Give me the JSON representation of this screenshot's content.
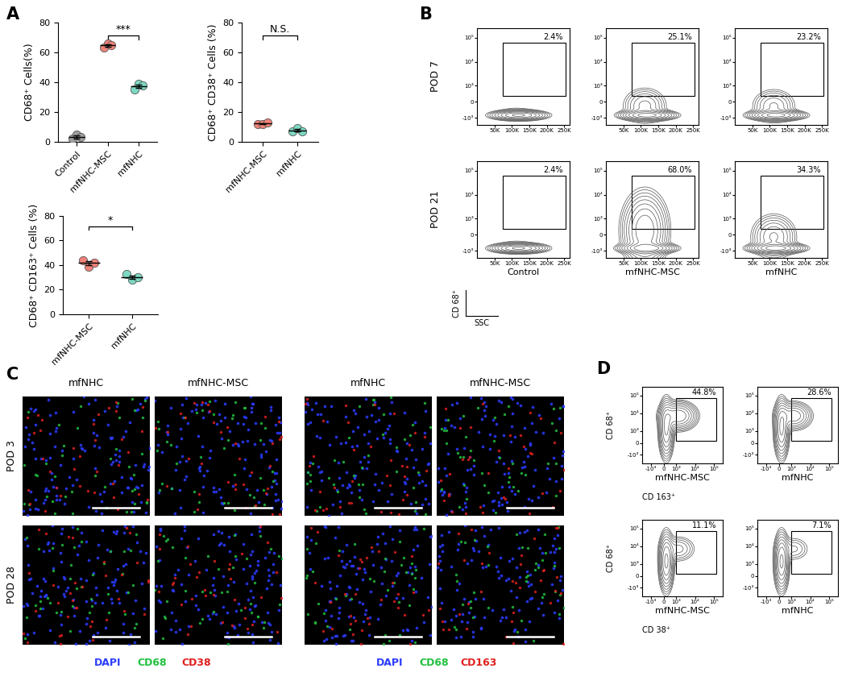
{
  "panel_labels": [
    "A",
    "B",
    "C",
    "D"
  ],
  "chart_data": [
    {
      "type": "scatter",
      "ylabel": "CD68⁺ Cells(%)",
      "categories": [
        "Control",
        "mfNHC-MSC",
        "mfNHC"
      ],
      "values": [
        [
          2,
          5,
          3
        ],
        [
          63,
          66,
          65
        ],
        [
          35,
          39,
          38
        ]
      ],
      "means": [
        3.3,
        64.7,
        37.3
      ],
      "errors": [
        0.9,
        0.9,
        1.2
      ],
      "colors": [
        "#9e9e9e",
        "#f0837a",
        "#7dd9c3"
      ],
      "ylim": [
        0,
        80
      ],
      "yticks": [
        0,
        20,
        40,
        60,
        80
      ],
      "annotations": [
        {
          "text": "***",
          "between": [
            "mfNHC-MSC",
            "mfNHC"
          ]
        }
      ]
    },
    {
      "type": "scatter",
      "ylabel": "CD68⁺ CD38⁺ Cells (%)",
      "categories": [
        "mfNHC-MSC",
        "mfNHC"
      ],
      "values": [
        [
          12,
          12,
          13
        ],
        [
          7,
          9,
          7
        ]
      ],
      "means": [
        12.3,
        7.7
      ],
      "errors": [
        0.3,
        0.7
      ],
      "colors": [
        "#f0837a",
        "#7dd9c3"
      ],
      "ylim": [
        0,
        80
      ],
      "yticks": [
        0,
        20,
        40,
        60,
        80
      ],
      "annotations": [
        {
          "text": "N.S.",
          "between": [
            "mfNHC-MSC",
            "mfNHC"
          ]
        }
      ]
    },
    {
      "type": "scatter",
      "ylabel": "CD68⁺ CD163⁺ Cells (%)",
      "categories": [
        "mfNHC-MSC",
        "mfNHC"
      ],
      "values": [
        [
          44,
          39,
          42
        ],
        [
          33,
          28,
          30
        ]
      ],
      "means": [
        41.7,
        30.3
      ],
      "errors": [
        1.5,
        1.5
      ],
      "colors": [
        "#f0837a",
        "#7dd9c3"
      ],
      "ylim": [
        0,
        80
      ],
      "yticks": [
        0,
        20,
        40,
        60,
        80
      ],
      "annotations": [
        {
          "text": "*",
          "between": [
            "mfNHC-MSC",
            "mfNHC"
          ]
        }
      ]
    }
  ],
  "flow_B": {
    "type": "contour",
    "rows": [
      "POD 7",
      "POD 21"
    ],
    "columns": [
      "Control",
      "mfNHC-MSC",
      "mfNHC"
    ],
    "xlabel": "SSC",
    "ylabel": "CD 68⁺",
    "values": [
      [
        2.4,
        25.1,
        23.2
      ],
      [
        2.4,
        68.0,
        34.3
      ]
    ],
    "value_labels": [
      [
        "2.4%",
        "25.1%",
        "23.2%"
      ],
      [
        "2.4%",
        "68.0%",
        "34.3%"
      ]
    ],
    "log": "y",
    "xlim": [
      0,
      265000
    ],
    "xticks": [
      {
        "value": 50000,
        "label": "50K"
      },
      {
        "value": 100000,
        "label": "100K"
      },
      {
        "value": 150000,
        "label": "150K"
      },
      {
        "value": 200000,
        "label": "200K"
      },
      {
        "value": 250000,
        "label": "250K"
      }
    ],
    "ylim": [
      -2000,
      250000
    ],
    "yticks": [
      {
        "value": -1000,
        "label": "-10³"
      },
      0,
      {
        "value": 1000,
        "label": "10³"
      },
      {
        "value": 10000,
        "label": "10⁴"
      },
      {
        "value": 100000,
        "label": "10⁵"
      }
    ]
  },
  "images_C": {
    "rows": [
      "POD 3",
      "POD 28"
    ],
    "groups": [
      {
        "columns": [
          "mfNHC",
          "mfNHC-MSC"
        ],
        "stains": [
          {
            "text": "DAPI",
            "color": "#2b3cff"
          },
          {
            "text": "CD68",
            "color": "#22c040"
          },
          {
            "text": "CD38",
            "color": "#e02020"
          }
        ]
      },
      {
        "columns": [
          "mfNHC",
          "mfNHC-MSC"
        ],
        "stains": [
          {
            "text": "DAPI",
            "color": "#2b3cff"
          },
          {
            "text": "CD68",
            "color": "#22c040"
          },
          {
            "text": "CD163",
            "color": "#e02020"
          }
        ]
      }
    ]
  },
  "flow_D": {
    "type": "contour",
    "columns": [
      "mfNHC-MSC",
      "mfNHC"
    ],
    "ylabel": "CD 68⁺",
    "rows": [
      {
        "xlabel": "CD 163⁺",
        "values": [
          44.8,
          28.6
        ],
        "value_labels": [
          "44.8%",
          "28.6%"
        ]
      },
      {
        "xlabel": "CD 38⁺",
        "values": [
          11.1,
          7.1
        ],
        "value_labels": [
          "11.1%",
          "7.1%"
        ]
      }
    ],
    "log": true,
    "xlim": [
      -3000,
      300000
    ],
    "xticks": [
      {
        "value": -1000,
        "label": "-10³"
      },
      0,
      {
        "value": 1000,
        "label": "10³"
      },
      {
        "value": 10000,
        "label": "10⁴"
      },
      {
        "value": 100000,
        "label": "10⁵"
      }
    ],
    "ylim": [
      -3000,
      300000
    ],
    "yticks": [
      {
        "value": -1000,
        "label": "-10³"
      },
      0,
      {
        "value": 1000,
        "label": "10³"
      },
      {
        "value": 10000,
        "label": "10⁴"
      },
      {
        "value": 100000,
        "label": "10⁵"
      }
    ]
  }
}
